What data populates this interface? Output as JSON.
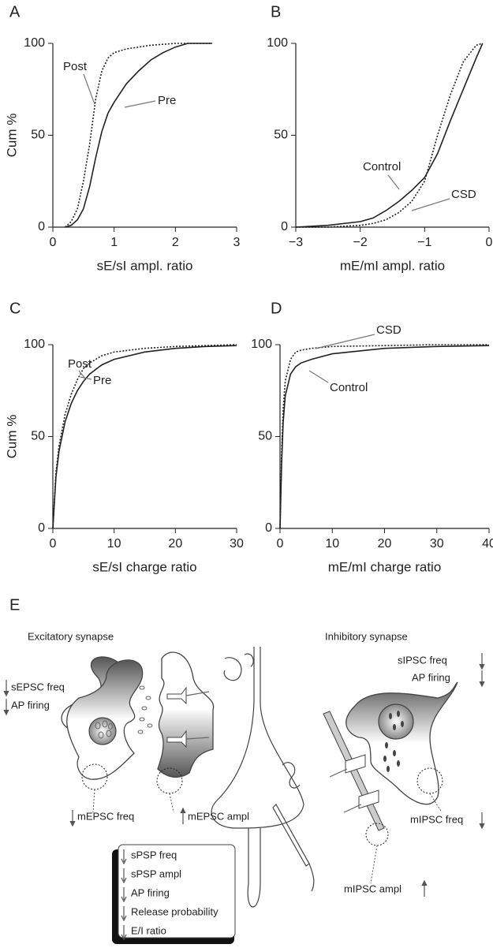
{
  "chart_data": [
    {
      "type": "line",
      "panel": "A",
      "ylabel": "Cum %",
      "xlabel": "sE/sI ampl. ratio",
      "x": [
        0.2,
        0.3,
        0.4,
        0.5,
        0.6,
        0.7,
        0.8,
        0.9,
        1.0,
        1.2,
        1.4,
        1.6,
        1.8,
        2.0,
        2.2,
        2.6
      ],
      "series": [
        {
          "name": "Post",
          "color": "#222",
          "style": "dotted",
          "values": [
            0,
            3,
            10,
            25,
            45,
            70,
            85,
            92,
            95,
            97,
            98,
            99,
            99.5,
            100,
            100,
            100
          ]
        },
        {
          "name": "Pre",
          "color": "#222",
          "style": "solid",
          "values": [
            0,
            1,
            4,
            10,
            22,
            38,
            52,
            62,
            68,
            78,
            85,
            91,
            95,
            98,
            100,
            100
          ]
        }
      ],
      "xlim": [
        0,
        3
      ],
      "xticks": [
        0,
        1,
        2,
        3
      ],
      "ylim": [
        0,
        100
      ],
      "yticks": [
        0,
        50,
        100
      ]
    },
    {
      "type": "line",
      "panel": "B",
      "xlabel": "mE/mI ampl. ratio",
      "x": [
        -3,
        -2.5,
        -2,
        -1.8,
        -1.6,
        -1.4,
        -1.2,
        -1.0,
        -0.8,
        -0.6,
        -0.4,
        -0.2,
        -0.1
      ],
      "series": [
        {
          "name": "Control",
          "color": "#222",
          "style": "solid",
          "values": [
            0,
            1,
            3,
            5,
            9,
            14,
            20,
            27,
            40,
            58,
            75,
            92,
            100
          ]
        },
        {
          "name": "CSD",
          "color": "#222",
          "style": "dotted",
          "values": [
            0,
            0,
            1,
            2,
            4,
            8,
            14,
            25,
            50,
            72,
            90,
            99,
            100
          ]
        }
      ],
      "xlim": [
        -3,
        0
      ],
      "xticks": [
        {
          "value": -3,
          "label": "−3"
        },
        {
          "value": -2,
          "label": "−2"
        },
        {
          "value": -1,
          "label": "−1"
        },
        0
      ],
      "ylim": [
        0,
        100
      ],
      "yticks": [
        0,
        50,
        100
      ]
    },
    {
      "type": "line",
      "panel": "C",
      "ylabel": "Cum %",
      "xlabel": "sE/sI charge ratio",
      "x": [
        0,
        0.5,
        1,
        2,
        3,
        4,
        5,
        6,
        8,
        10,
        15,
        20,
        25,
        30
      ],
      "series": [
        {
          "name": "Post",
          "color": "#222",
          "style": "dotted",
          "values": [
            0,
            30,
            45,
            62,
            73,
            81,
            87,
            90,
            94,
            96,
            98,
            99,
            99.5,
            100
          ]
        },
        {
          "name": "Pre",
          "color": "#222",
          "style": "solid",
          "values": [
            0,
            28,
            42,
            58,
            68,
            75,
            80,
            84,
            89,
            92,
            96,
            98,
            99,
            99.5
          ]
        }
      ],
      "xlim": [
        0,
        30
      ],
      "xticks": [
        0,
        10,
        20,
        30
      ],
      "ylim": [
        0,
        100
      ],
      "yticks": [
        0,
        50,
        100
      ]
    },
    {
      "type": "line",
      "panel": "D",
      "xlabel": "mE/mI charge ratio",
      "x": [
        0,
        0.3,
        0.6,
        1,
        2,
        3,
        4,
        6,
        10,
        20,
        30,
        40
      ],
      "series": [
        {
          "name": "CSD",
          "color": "#222",
          "style": "dotted",
          "values": [
            0,
            40,
            65,
            80,
            92,
            96,
            97,
            98,
            99,
            99.5,
            100,
            100
          ]
        },
        {
          "name": "Control",
          "color": "#222",
          "style": "solid",
          "values": [
            0,
            35,
            58,
            72,
            84,
            88,
            90,
            92,
            95,
            98,
            99,
            99.5
          ]
        }
      ],
      "xlim": [
        0,
        40
      ],
      "xticks": [
        0,
        10,
        20,
        30,
        40
      ],
      "ylim": [
        0,
        100
      ],
      "yticks": [
        0,
        50,
        100
      ]
    }
  ],
  "panel_e": {
    "label": "E",
    "excitatory_title": "Excitatory synapse",
    "inhibitory_title": "Inhibitory synapse",
    "labels": [
      "sEPSC freq",
      "AP firing",
      "mEPSC freq",
      "mEPSC ampl",
      "sIPSC freq",
      "AP firing",
      "mIPSC freq",
      "mIPSC ampl"
    ],
    "box": [
      "sPSP freq",
      "sPSP ampl",
      "AP firing",
      "Release probability",
      "E/I ratio"
    ]
  }
}
